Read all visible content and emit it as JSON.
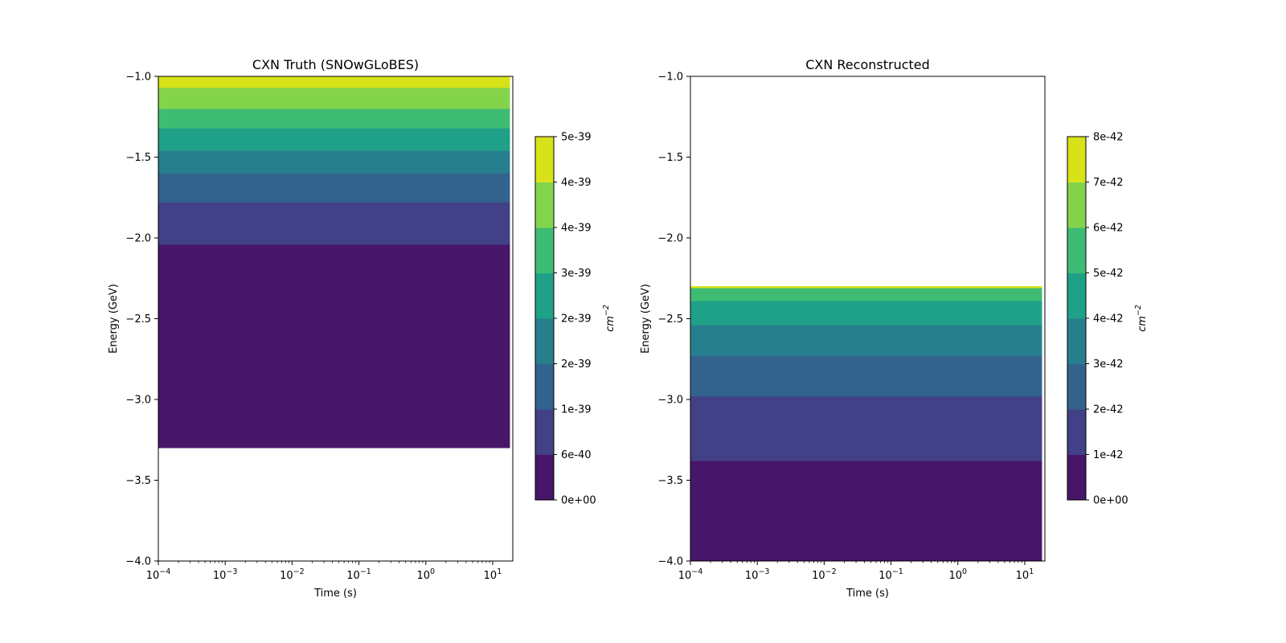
{
  "chart_data": [
    {
      "type": "contourf",
      "title": "CXN Truth (SNOwGLoBES)",
      "xlabel": "Time (s)",
      "ylabel": "Energy (GeV)",
      "xscale": "log",
      "xlim": [
        0.0001,
        20
      ],
      "ylim": [
        -4.0,
        -1.0
      ],
      "x_ticks": [
        0.0001,
        0.001,
        0.01,
        0.1,
        1,
        10
      ],
      "x_tick_labels": [
        {
          "base": "10",
          "exp": "−4"
        },
        {
          "base": "10",
          "exp": "−3"
        },
        {
          "base": "10",
          "exp": "−2"
        },
        {
          "base": "10",
          "exp": "−1"
        },
        {
          "base": "10",
          "exp": "0"
        },
        {
          "base": "10",
          "exp": "1"
        }
      ],
      "y_ticks": [
        -1.0,
        -1.5,
        -2.0,
        -2.5,
        -3.0,
        -3.5,
        -4.0
      ],
      "y_tick_labels": [
        "−1.0",
        "−1.5",
        "−2.0",
        "−2.5",
        "−3.0",
        "−3.5",
        "−4.0"
      ],
      "data_x_range": [
        0.0001,
        18
      ],
      "bands": [
        {
          "y_low": -3.3,
          "y_high": -2.04,
          "level": 0
        },
        {
          "y_low": -2.04,
          "y_high": -1.78,
          "level": 1
        },
        {
          "y_low": -1.78,
          "y_high": -1.6,
          "level": 2
        },
        {
          "y_low": -1.6,
          "y_high": -1.46,
          "level": 3
        },
        {
          "y_low": -1.46,
          "y_high": -1.32,
          "level": 4
        },
        {
          "y_low": -1.32,
          "y_high": -1.2,
          "level": 5
        },
        {
          "y_low": -1.2,
          "y_high": -1.07,
          "level": 6
        },
        {
          "y_low": -1.07,
          "y_high": -1.0,
          "level": 7
        }
      ],
      "colorbar": {
        "label_base": "cm",
        "label_exp": "−2",
        "tick_labels": [
          "0e+00",
          "6e-40",
          "1e-39",
          "2e-39",
          "2e-39",
          "3e-39",
          "4e-39",
          "4e-39",
          "5e-39"
        ]
      }
    },
    {
      "type": "contourf",
      "title": "CXN Reconstructed",
      "xlabel": "Time (s)",
      "ylabel": "Energy (GeV)",
      "xscale": "log",
      "xlim": [
        0.0001,
        20
      ],
      "ylim": [
        -4.0,
        -1.0
      ],
      "x_ticks": [
        0.0001,
        0.001,
        0.01,
        0.1,
        1,
        10
      ],
      "x_tick_labels": [
        {
          "base": "10",
          "exp": "−4"
        },
        {
          "base": "10",
          "exp": "−3"
        },
        {
          "base": "10",
          "exp": "−2"
        },
        {
          "base": "10",
          "exp": "−1"
        },
        {
          "base": "10",
          "exp": "0"
        },
        {
          "base": "10",
          "exp": "1"
        }
      ],
      "y_ticks": [
        -1.0,
        -1.5,
        -2.0,
        -2.5,
        -3.0,
        -3.5,
        -4.0
      ],
      "y_tick_labels": [
        "−1.0",
        "−1.5",
        "−2.0",
        "−2.5",
        "−3.0",
        "−3.5",
        "−4.0"
      ],
      "data_x_range": [
        0.0001,
        18
      ],
      "bands": [
        {
          "y_low": -4.0,
          "y_high": -3.38,
          "level": 0
        },
        {
          "y_low": -3.38,
          "y_high": -2.98,
          "level": 1
        },
        {
          "y_low": -2.98,
          "y_high": -2.73,
          "level": 2
        },
        {
          "y_low": -2.73,
          "y_high": -2.54,
          "level": 3
        },
        {
          "y_low": -2.54,
          "y_high": -2.39,
          "level": 4
        },
        {
          "y_low": -2.39,
          "y_high": -2.31,
          "level": 5
        },
        {
          "y_low": -2.31,
          "y_high": -2.3,
          "level": 7
        }
      ],
      "colorbar": {
        "label_base": "cm",
        "label_exp": "−2",
        "tick_labels": [
          "0e+00",
          "1e-42",
          "2e-42",
          "3e-42",
          "4e-42",
          "5e-42",
          "6e-42",
          "7e-42",
          "8e-42"
        ]
      }
    }
  ],
  "colormap": [
    "#481668",
    "#424086",
    "#33638d",
    "#277f8e",
    "#1fa187",
    "#3fbc73",
    "#84d44b",
    "#d8e219"
  ]
}
